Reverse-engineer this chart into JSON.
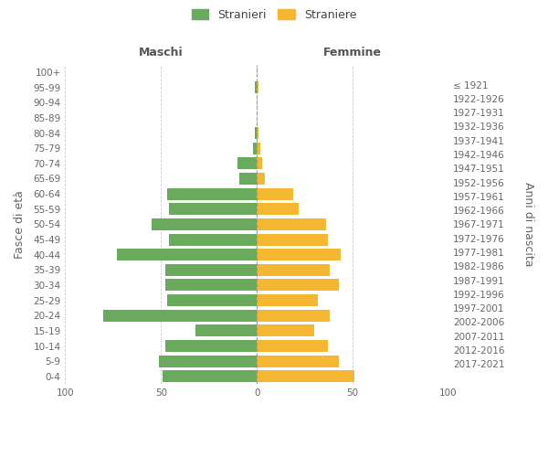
{
  "age_groups": [
    "0-4",
    "5-9",
    "10-14",
    "15-19",
    "20-24",
    "25-29",
    "30-34",
    "35-39",
    "40-44",
    "45-49",
    "50-54",
    "55-59",
    "60-64",
    "65-69",
    "70-74",
    "75-79",
    "80-84",
    "85-89",
    "90-94",
    "95-99",
    "100+"
  ],
  "birth_years": [
    "2017-2021",
    "2012-2016",
    "2007-2011",
    "2002-2006",
    "1997-2001",
    "1992-1996",
    "1987-1991",
    "1982-1986",
    "1977-1981",
    "1972-1976",
    "1967-1971",
    "1962-1966",
    "1957-1961",
    "1952-1956",
    "1947-1951",
    "1942-1946",
    "1937-1941",
    "1932-1936",
    "1927-1931",
    "1922-1926",
    "≤ 1921"
  ],
  "males": [
    49,
    51,
    48,
    32,
    80,
    47,
    48,
    48,
    73,
    46,
    55,
    46,
    47,
    9,
    10,
    2,
    1,
    0,
    0,
    1,
    0
  ],
  "females": [
    51,
    43,
    37,
    30,
    38,
    32,
    43,
    38,
    44,
    37,
    36,
    22,
    19,
    4,
    3,
    2,
    1,
    0,
    0,
    1,
    0
  ],
  "male_color": "#6aaa5f",
  "female_color": "#f5b731",
  "background_color": "#ffffff",
  "grid_color": "#cccccc",
  "xlabel_left": "Maschi",
  "xlabel_right": "Femmine",
  "ylabel_left": "Fasce di età",
  "ylabel_right": "Anni di nascita",
  "legend_male": "Stranieri",
  "legend_female": "Straniere",
  "xlim": 100,
  "title_fontsize": 10.5,
  "subtitle_fontsize": 7.0,
  "tick_fontsize": 7.5,
  "label_fontsize": 9
}
